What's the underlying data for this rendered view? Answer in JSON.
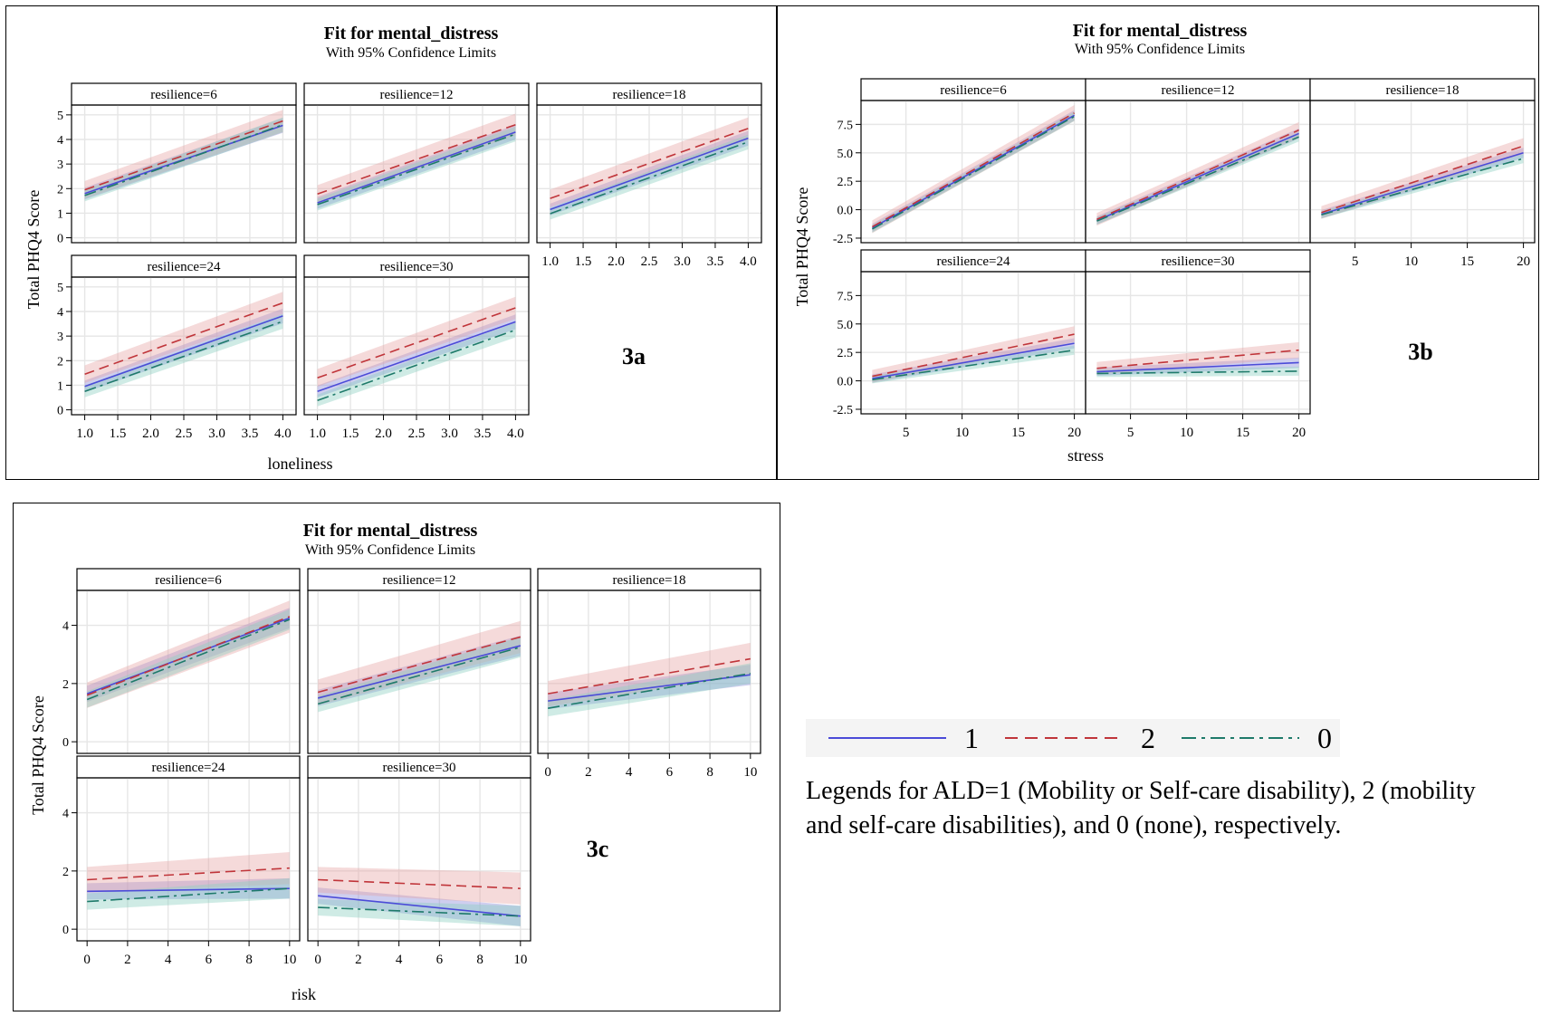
{
  "chart_data": [
    {
      "id": "3a",
      "type": "line",
      "title": "Fit for mental_distress",
      "subtitle": "With 95% Confidence Limits",
      "xlabel": "loneliness",
      "ylabel": "Total PHQ4 Score",
      "tag": "3a",
      "xlim": [
        0.8,
        4.2
      ],
      "ylim": [
        -0.2,
        5.4
      ],
      "xticks": [
        1.0,
        1.5,
        2.0,
        2.5,
        3.0,
        3.5,
        4.0
      ],
      "xtick_labels": [
        "1.0",
        "1.5",
        "2.0",
        "2.5",
        "3.0",
        "3.5",
        "4.0"
      ],
      "yticks": [
        0,
        1,
        2,
        3,
        4,
        5
      ],
      "ytick_labels": [
        "0",
        "1",
        "2",
        "3",
        "4",
        "5"
      ],
      "x_range": [
        1.0,
        4.0
      ],
      "ci": [
        0.3,
        0.45,
        0.3
      ],
      "panels": [
        {
          "label": "resilience=6",
          "series": [
            {
              "ald": "1",
              "y": [
                1.8,
                4.57
              ]
            },
            {
              "ald": "2",
              "y": [
                1.95,
                4.75
              ]
            },
            {
              "ald": "0",
              "y": [
                1.72,
                4.6
              ]
            }
          ]
        },
        {
          "label": "resilience=12",
          "series": [
            {
              "ald": "1",
              "y": [
                1.42,
                4.3
              ]
            },
            {
              "ald": "2",
              "y": [
                1.78,
                4.6
              ]
            },
            {
              "ald": "0",
              "y": [
                1.35,
                4.22
              ]
            }
          ]
        },
        {
          "label": "resilience=18",
          "series": [
            {
              "ald": "1",
              "y": [
                1.15,
                4.05
              ]
            },
            {
              "ald": "2",
              "y": [
                1.6,
                4.45
              ]
            },
            {
              "ald": "0",
              "y": [
                0.98,
                3.9
              ]
            }
          ]
        },
        {
          "label": "resilience=24",
          "series": [
            {
              "ald": "1",
              "y": [
                0.95,
                3.82
              ]
            },
            {
              "ald": "2",
              "y": [
                1.45,
                4.35
              ]
            },
            {
              "ald": "0",
              "y": [
                0.75,
                3.6
              ]
            }
          ]
        },
        {
          "label": "resilience=30",
          "series": [
            {
              "ald": "1",
              "y": [
                0.75,
                3.58
              ]
            },
            {
              "ald": "2",
              "y": [
                1.3,
                4.15
              ]
            },
            {
              "ald": "0",
              "y": [
                0.38,
                3.25
              ]
            }
          ]
        }
      ]
    },
    {
      "id": "3b",
      "type": "line",
      "title": "Fit for mental_distress",
      "subtitle": "With 95% Confidence Limits",
      "xlabel": "stress",
      "ylabel": "Total PHQ4 Score",
      "tag": "3b",
      "xlim": [
        1,
        21
      ],
      "ylim": [
        -2.9,
        9.6
      ],
      "xticks": [
        5,
        10,
        15,
        20
      ],
      "xtick_labels": [
        "5",
        "10",
        "15",
        "20"
      ],
      "yticks": [
        -2.5,
        0.0,
        2.5,
        5.0,
        7.5
      ],
      "ytick_labels": [
        "-2.5",
        "0.0",
        "2.5",
        "5.0",
        "7.5"
      ],
      "x_range": [
        2,
        20
      ],
      "ci": [
        0.45,
        0.7,
        0.4
      ],
      "panels": [
        {
          "label": "resilience=6",
          "series": [
            {
              "ald": "1",
              "y": [
                -1.6,
                8.3
              ]
            },
            {
              "ald": "2",
              "y": [
                -1.5,
                8.5
              ]
            },
            {
              "ald": "0",
              "y": [
                -1.7,
                8.2
              ]
            }
          ]
        },
        {
          "label": "resilience=12",
          "series": [
            {
              "ald": "1",
              "y": [
                -0.95,
                6.7
              ]
            },
            {
              "ald": "2",
              "y": [
                -0.85,
                7.0
              ]
            },
            {
              "ald": "0",
              "y": [
                -1.0,
                6.4
              ]
            }
          ]
        },
        {
          "label": "resilience=18",
          "series": [
            {
              "ald": "1",
              "y": [
                -0.4,
                5.0
              ]
            },
            {
              "ald": "2",
              "y": [
                -0.25,
                5.6
              ]
            },
            {
              "ald": "0",
              "y": [
                -0.45,
                4.5
              ]
            }
          ]
        },
        {
          "label": "resilience=24",
          "series": [
            {
              "ald": "1",
              "y": [
                0.2,
                3.3
              ]
            },
            {
              "ald": "2",
              "y": [
                0.4,
                4.1
              ]
            },
            {
              "ald": "0",
              "y": [
                0.1,
                2.7
              ]
            }
          ]
        },
        {
          "label": "resilience=30",
          "series": [
            {
              "ald": "1",
              "y": [
                0.8,
                1.6
              ]
            },
            {
              "ald": "2",
              "y": [
                1.1,
                2.7
              ]
            },
            {
              "ald": "0",
              "y": [
                0.65,
                0.85
              ]
            }
          ]
        }
      ]
    },
    {
      "id": "3c",
      "type": "line",
      "title": "Fit for mental_distress",
      "subtitle": "With 95% Confidence Limits",
      "xlabel": "risk",
      "ylabel": "Total PHQ4 Score",
      "tag": "3c",
      "xlim": [
        -0.5,
        10.5
      ],
      "ylim": [
        -0.4,
        5.2
      ],
      "xticks": [
        0,
        2,
        4,
        6,
        8,
        10
      ],
      "xtick_labels": [
        "0",
        "2",
        "4",
        "6",
        "8",
        "10"
      ],
      "yticks": [
        0,
        2,
        4
      ],
      "ytick_labels": [
        "0",
        "2",
        "4"
      ],
      "x_range": [
        0,
        10
      ],
      "ci": [
        0.35,
        0.55,
        0.35
      ],
      "panels": [
        {
          "label": "resilience=6",
          "series": [
            {
              "ald": "1",
              "y": [
                1.65,
                4.25
              ]
            },
            {
              "ald": "2",
              "y": [
                1.6,
                4.3
              ]
            },
            {
              "ald": "0",
              "y": [
                1.45,
                4.2
              ]
            }
          ]
        },
        {
          "label": "resilience=12",
          "series": [
            {
              "ald": "1",
              "y": [
                1.5,
                3.3
              ]
            },
            {
              "ald": "2",
              "y": [
                1.7,
                3.6
              ]
            },
            {
              "ald": "0",
              "y": [
                1.3,
                3.25
              ]
            }
          ]
        },
        {
          "label": "resilience=18",
          "series": [
            {
              "ald": "1",
              "y": [
                1.4,
                2.3
              ]
            },
            {
              "ald": "2",
              "y": [
                1.65,
                2.85
              ]
            },
            {
              "ald": "0",
              "y": [
                1.15,
                2.35
              ]
            }
          ]
        },
        {
          "label": "resilience=24",
          "series": [
            {
              "ald": "1",
              "y": [
                1.3,
                1.4
              ]
            },
            {
              "ald": "2",
              "y": [
                1.7,
                2.1
              ]
            },
            {
              "ald": "0",
              "y": [
                0.95,
                1.4
              ]
            }
          ]
        },
        {
          "label": "resilience=30",
          "series": [
            {
              "ald": "1",
              "y": [
                1.15,
                0.45
              ]
            },
            {
              "ald": "2",
              "y": [
                1.7,
                1.4
              ]
            },
            {
              "ald": "0",
              "y": [
                0.75,
                0.45
              ]
            }
          ]
        }
      ]
    }
  ],
  "legend": {
    "items": [
      {
        "label": "1",
        "color": "#4b4bd8",
        "dash": "solid"
      },
      {
        "label": "2",
        "color": "#c0353a",
        "dash": "dashed"
      },
      {
        "label": "0",
        "color": "#1e7a6a",
        "dash": "dashdot"
      }
    ],
    "note": "Legends for ALD=1 (Mobility or Self-care disability), 2 (mobility and self-care disabilities), and 0 (none), respectively."
  },
  "colors": {
    "ald1": "#4b4bd8",
    "ald2": "#c0353a",
    "ald0": "#1e7a6a",
    "band1": "#8a8ad8",
    "band2": "#e8a6a6",
    "band0": "#8ccfc2",
    "grid": "#e6e6e6"
  }
}
